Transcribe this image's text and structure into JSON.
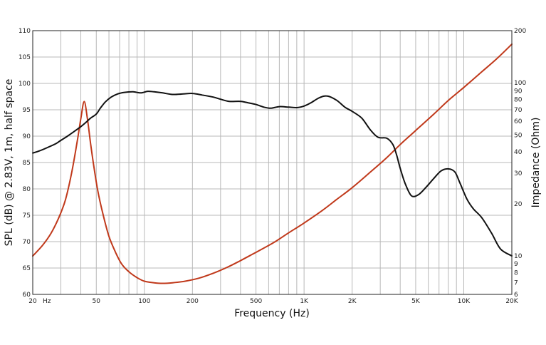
{
  "chart_data": {
    "type": "line",
    "xlabel": "Frequency (Hz)",
    "ylabel": "SPL (dB) @ 2.83V, 1m, half space",
    "y2label": "Impedance (Ohm)",
    "xscale": "log",
    "xlim": [
      20,
      20000
    ],
    "ylim": [
      60,
      110
    ],
    "y2scale": "log",
    "y2lim": [
      6,
      200
    ],
    "grid": true,
    "x_ticks": [
      {
        "value": 20,
        "label": "20"
      },
      {
        "value": 50,
        "label": "50"
      },
      {
        "value": 100,
        "label": "100"
      },
      {
        "value": 200,
        "label": "200"
      },
      {
        "value": 500,
        "label": "500"
      },
      {
        "value": 1000,
        "label": "1K"
      },
      {
        "value": 2000,
        "label": "2K"
      },
      {
        "value": 5000,
        "label": "5K"
      },
      {
        "value": 10000,
        "label": "10K"
      },
      {
        "value": 20000,
        "label": "20K"
      }
    ],
    "x_unit_label": "Hz",
    "y_ticks": [
      {
        "value": 60,
        "label": "60"
      },
      {
        "value": 65,
        "label": "65"
      },
      {
        "value": 70,
        "label": "70"
      },
      {
        "value": 75,
        "label": "75"
      },
      {
        "value": 80,
        "label": "80"
      },
      {
        "value": 85,
        "label": "85"
      },
      {
        "value": 90,
        "label": "90"
      },
      {
        "value": 95,
        "label": "95"
      },
      {
        "value": 100,
        "label": "100"
      },
      {
        "value": 105,
        "label": "105"
      },
      {
        "value": 110,
        "label": "110"
      }
    ],
    "y2_ticks": [
      {
        "value": 6,
        "label": "6"
      },
      {
        "value": 7,
        "label": "7"
      },
      {
        "value": 8,
        "label": "8"
      },
      {
        "value": 9,
        "label": "9"
      },
      {
        "value": 10,
        "label": "10"
      },
      {
        "value": 20,
        "label": "20"
      },
      {
        "value": 30,
        "label": "30"
      },
      {
        "value": 40,
        "label": "40"
      },
      {
        "value": 50,
        "label": "50"
      },
      {
        "value": 60,
        "label": "60"
      },
      {
        "value": 70,
        "label": "70"
      },
      {
        "value": 80,
        "label": "80"
      },
      {
        "value": 90,
        "label": "90"
      },
      {
        "value": 100,
        "label": "100"
      },
      {
        "value": 200,
        "label": "200"
      }
    ],
    "colors": {
      "spl": "#111111",
      "impedance": "#c0391b"
    },
    "series": [
      {
        "axis": "left",
        "x": [
          20,
          22,
          25,
          28,
          30,
          33,
          36,
          40,
          43,
          46,
          50,
          53,
          57,
          62,
          68,
          75,
          85,
          95,
          105,
          115,
          130,
          150,
          175,
          200,
          230,
          270,
          300,
          340,
          400,
          450,
          500,
          560,
          620,
          700,
          800,
          900,
          1000,
          1100,
          1250,
          1400,
          1600,
          1800,
          2000,
          2300,
          2600,
          2900,
          3300,
          3600,
          3800,
          4000,
          4300,
          4700,
          5200,
          5800,
          6500,
          7200,
          8000,
          8800,
          9500,
          10500,
          11500,
          13000,
          15000,
          17000,
          20000
        ],
        "values": [
          86.8,
          87.2,
          87.9,
          88.6,
          89.2,
          90.0,
          90.8,
          91.8,
          92.6,
          93.4,
          94.2,
          95.3,
          96.5,
          97.4,
          98.0,
          98.3,
          98.4,
          98.2,
          98.5,
          98.4,
          98.2,
          97.9,
          98.0,
          98.1,
          97.8,
          97.4,
          97.0,
          96.6,
          96.6,
          96.3,
          96.0,
          95.5,
          95.3,
          95.6,
          95.5,
          95.4,
          95.7,
          96.3,
          97.3,
          97.6,
          96.8,
          95.5,
          94.7,
          93.4,
          91.2,
          89.8,
          89.6,
          88.4,
          86.4,
          83.9,
          81.0,
          78.7,
          78.9,
          80.3,
          82.0,
          83.4,
          83.8,
          83.2,
          81.0,
          78.0,
          76.2,
          74.5,
          71.5,
          68.6,
          67.3
        ]
      },
      {
        "axis": "right",
        "x": [
          20,
          23,
          26,
          29,
          32,
          35,
          38,
          40,
          42,
          44,
          46,
          48,
          51,
          55,
          60,
          66,
          72,
          80,
          90,
          100,
          115,
          130,
          150,
          180,
          220,
          270,
          330,
          400,
          500,
          650,
          800,
          1000,
          1300,
          1600,
          2000,
          2600,
          3300,
          4000,
          5000,
          6500,
          8000,
          10000,
          13000,
          16000,
          20000
        ],
        "values": [
          10.0,
          11.5,
          13.5,
          16.5,
          21.0,
          30.0,
          46.0,
          62.0,
          78.0,
          62.0,
          45.0,
          34.0,
          24.0,
          17.5,
          13.0,
          10.5,
          9.0,
          8.1,
          7.5,
          7.15,
          7.0,
          6.95,
          7.0,
          7.15,
          7.45,
          7.95,
          8.6,
          9.4,
          10.5,
          12.0,
          13.6,
          15.5,
          18.3,
          21.2,
          24.8,
          30.5,
          37.0,
          44.0,
          53.0,
          66.0,
          79.0,
          94.0,
          116.0,
          137.0,
          167.0
        ]
      }
    ]
  }
}
